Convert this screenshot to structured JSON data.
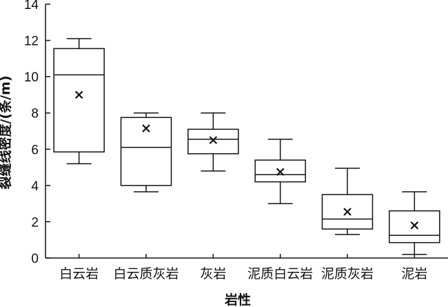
{
  "chart_data": {
    "type": "box",
    "xlabel": "岩性",
    "ylabel": "裂缝线密度/(条/m)",
    "ylim": [
      0,
      14
    ],
    "yticks": [
      "0",
      "2",
      "4",
      "6",
      "8",
      "10",
      "12",
      "14"
    ],
    "categories": [
      "白云岩",
      "白云质灰岩",
      "灰岩",
      "泥质白云岩",
      "泥质灰岩",
      "泥岩"
    ],
    "boxes": [
      {
        "min": 5.2,
        "q1": 5.85,
        "median": 10.1,
        "q3": 11.55,
        "max": 12.1,
        "mean": 9.0
      },
      {
        "min": 3.65,
        "q1": 4.0,
        "median": 6.1,
        "q3": 7.75,
        "max": 8.0,
        "mean": 7.15
      },
      {
        "min": 4.8,
        "q1": 5.75,
        "median": 6.55,
        "q3": 7.1,
        "max": 8.0,
        "mean": 6.5
      },
      {
        "min": 3.0,
        "q1": 4.2,
        "median": 4.6,
        "q3": 5.4,
        "max": 6.55,
        "mean": 4.75
      },
      {
        "min": 1.3,
        "q1": 1.6,
        "median": 2.15,
        "q3": 3.5,
        "max": 4.95,
        "mean": 2.55
      },
      {
        "min": 0.2,
        "q1": 0.85,
        "median": 1.25,
        "q3": 2.6,
        "max": 3.65,
        "mean": 1.8
      }
    ],
    "grid": false,
    "legend": "none"
  }
}
